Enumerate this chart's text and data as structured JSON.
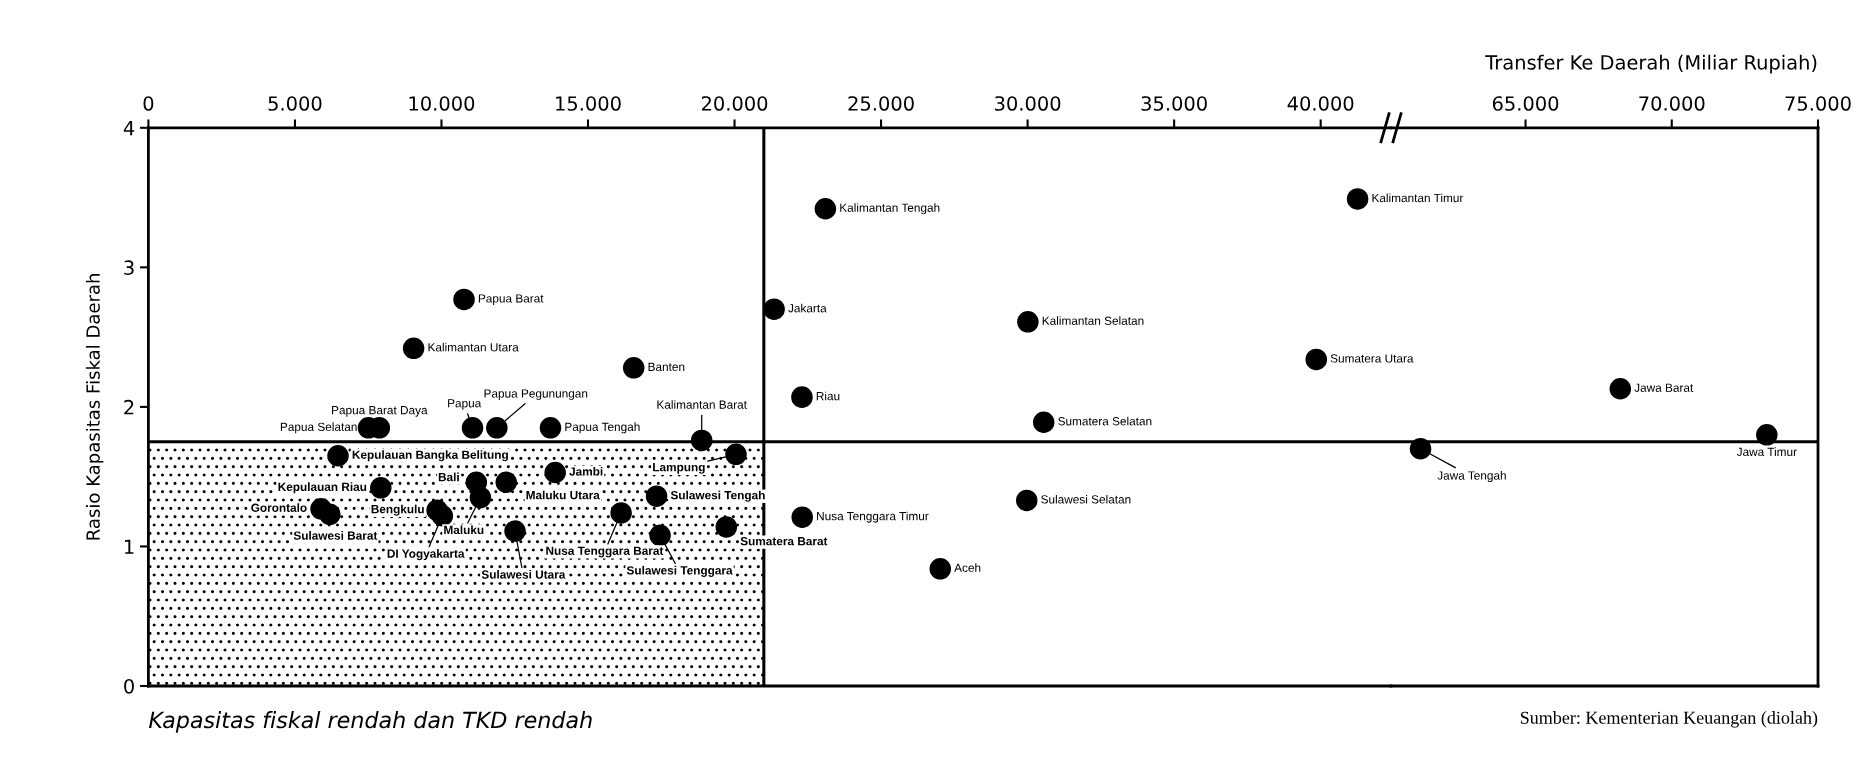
{
  "chart_data": [
    {
      "type": "scatter",
      "ylabel": "Rasio Kapasitas Fiskal Daerah",
      "xlim": [
        0,
        42400
      ],
      "ylim": [
        0,
        4
      ],
      "xticks": [
        0,
        {
          "value": 5000,
          "label": "5.000"
        },
        {
          "value": 10000,
          "label": "10.000"
        },
        {
          "value": 15000,
          "label": "15.000"
        },
        {
          "value": 20000,
          "label": "20.000"
        },
        {
          "value": 25000,
          "label": "25.000"
        },
        {
          "value": 30000,
          "label": "30.000"
        },
        {
          "value": 35000,
          "label": "35.000"
        },
        {
          "value": 40000,
          "label": "40.000"
        }
      ],
      "yticks": [
        0,
        1,
        2,
        3,
        4
      ],
      "grid": false,
      "legend": false,
      "marker": "circle",
      "series": [
        {
          "color": "#000000",
          "x": [
            10770,
            9050,
            16560,
            7510,
            7880,
            11060,
            11890,
            13720,
            18880,
            20050,
            6470,
            7930,
            5890,
            6190,
            9850,
            10030,
            11190,
            12210,
            11330,
            13880,
            12510,
            16130,
            17340,
            17460,
            19720,
            23100,
            21350,
            30010,
            39850,
            22300,
            30550,
            29970,
            22310,
            27020,
            41260
          ],
          "values": [
            2.77,
            2.42,
            2.28,
            1.85,
            1.85,
            1.85,
            1.85,
            1.85,
            1.76,
            1.66,
            1.65,
            1.42,
            1.27,
            1.23,
            1.26,
            1.22,
            1.46,
            1.46,
            1.35,
            1.53,
            1.11,
            1.24,
            1.36,
            1.08,
            1.14,
            3.42,
            2.7,
            2.61,
            2.34,
            2.07,
            1.89,
            1.33,
            1.21,
            0.84,
            3.49
          ]
        }
      ],
      "ref_lines": [
        {
          "axis": "x",
          "value": 21000,
          "color": "#000000"
        },
        {
          "axis": "y",
          "value": 1.75,
          "color": "#000000"
        }
      ],
      "bands": [
        {
          "axis": "x",
          "from": 0,
          "to": 21000,
          "color": "#000000"
        }
      ],
      "annotations": [
        {
          "text": "Papua Barat",
          "x": 10770,
          "y": 2.77
        },
        {
          "text": "Kalimantan Utara",
          "x": 9050,
          "y": 2.42
        },
        {
          "text": "Banten",
          "x": 16560,
          "y": 2.28
        },
        {
          "text": "Papua Selatan",
          "x": 7510,
          "y": 1.85
        },
        {
          "text": "Papua Barat Daya",
          "x": 7880,
          "y": 1.85
        },
        {
          "text": "Papua",
          "x": 11060,
          "y": 1.85
        },
        {
          "text": "Papua Pegunungan",
          "x": 11890,
          "y": 1.85
        },
        {
          "text": "Papua Tengah",
          "x": 13720,
          "y": 1.85
        },
        {
          "text": "Kalimantan Barat",
          "x": 18880,
          "y": 1.76
        },
        {
          "text": "Lampung",
          "x": 20050,
          "y": 1.66
        },
        {
          "text": "Kepulauan Bangka Belitung",
          "x": 6470,
          "y": 1.65
        },
        {
          "text": "Kepulauan Riau",
          "x": 7930,
          "y": 1.42
        },
        {
          "text": "Gorontalo",
          "x": 5890,
          "y": 1.27
        },
        {
          "text": "Sulawesi Barat",
          "x": 6190,
          "y": 1.23
        },
        {
          "text": "Bengkulu",
          "x": 9850,
          "y": 1.26
        },
        {
          "text": "DI Yogyakarta",
          "x": 10030,
          "y": 1.22
        },
        {
          "text": "Bali",
          "x": 11190,
          "y": 1.46
        },
        {
          "text": "Maluku Utara",
          "x": 12210,
          "y": 1.46
        },
        {
          "text": "Maluku",
          "x": 11330,
          "y": 1.35
        },
        {
          "text": "Jambi",
          "x": 13880,
          "y": 1.53
        },
        {
          "text": "Sulawesi Utara",
          "x": 12510,
          "y": 1.11
        },
        {
          "text": "Nusa Tenggara Barat",
          "x": 16130,
          "y": 1.24
        },
        {
          "text": "Sulawesi Tengah",
          "x": 17340,
          "y": 1.36
        },
        {
          "text": "Sulawesi Tenggara",
          "x": 17460,
          "y": 1.08
        },
        {
          "text": "Sumatera Barat",
          "x": 19720,
          "y": 1.14
        },
        {
          "text": "Kalimantan Tengah",
          "x": 23100,
          "y": 3.42
        },
        {
          "text": "Jakarta",
          "x": 21350,
          "y": 2.7
        },
        {
          "text": "Kalimantan Selatan",
          "x": 30010,
          "y": 2.61
        },
        {
          "text": "Sumatera Utara",
          "x": 39850,
          "y": 2.34
        },
        {
          "text": "Riau",
          "x": 22300,
          "y": 2.07
        },
        {
          "text": "Sumatera Selatan",
          "x": 30550,
          "y": 1.89
        },
        {
          "text": "Sulawesi Selatan",
          "x": 29970,
          "y": 1.33
        },
        {
          "text": "Nusa Tenggara Timur",
          "x": 22310,
          "y": 1.21
        },
        {
          "text": "Aceh",
          "x": 27020,
          "y": 0.84
        },
        {
          "text": "Kalimantan Timur",
          "x": 41260,
          "y": 3.49
        },
        "Kapasitas fiskal rendah dan TKD rendah"
      ]
    },
    {
      "type": "scatter",
      "xlabel": "Transfer Ke Daerah (Miliar Rupiah)",
      "xlim": [
        60400,
        75000
      ],
      "ylim": [
        0,
        4
      ],
      "xticks": [
        {
          "value": 65000,
          "label": "65.000"
        },
        {
          "value": 70000,
          "label": "70.000"
        },
        {
          "value": 75000,
          "label": "75.000"
        }
      ],
      "yticks": [
        0,
        1,
        2,
        3,
        4
      ],
      "tick_labels": "x",
      "grid": false,
      "legend": false,
      "marker": "circle",
      "series": [
        {
          "color": "#000000",
          "x": [
            61410,
            68240,
            73250
          ],
          "values": [
            1.7,
            2.13,
            1.8
          ]
        }
      ],
      "ref_lines": [
        {
          "axis": "y",
          "value": 1.75,
          "color": "#000000"
        }
      ],
      "annotations": [
        {
          "text": "Jawa Tengah",
          "x": 61410,
          "y": 1.7
        },
        {
          "text": "Jawa Barat",
          "x": 68240,
          "y": 2.13
        },
        {
          "text": "Jawa Timur",
          "x": 73250,
          "y": 1.8
        },
        "Sumber: Kementerian Keuangan (diolah)"
      ]
    }
  ]
}
